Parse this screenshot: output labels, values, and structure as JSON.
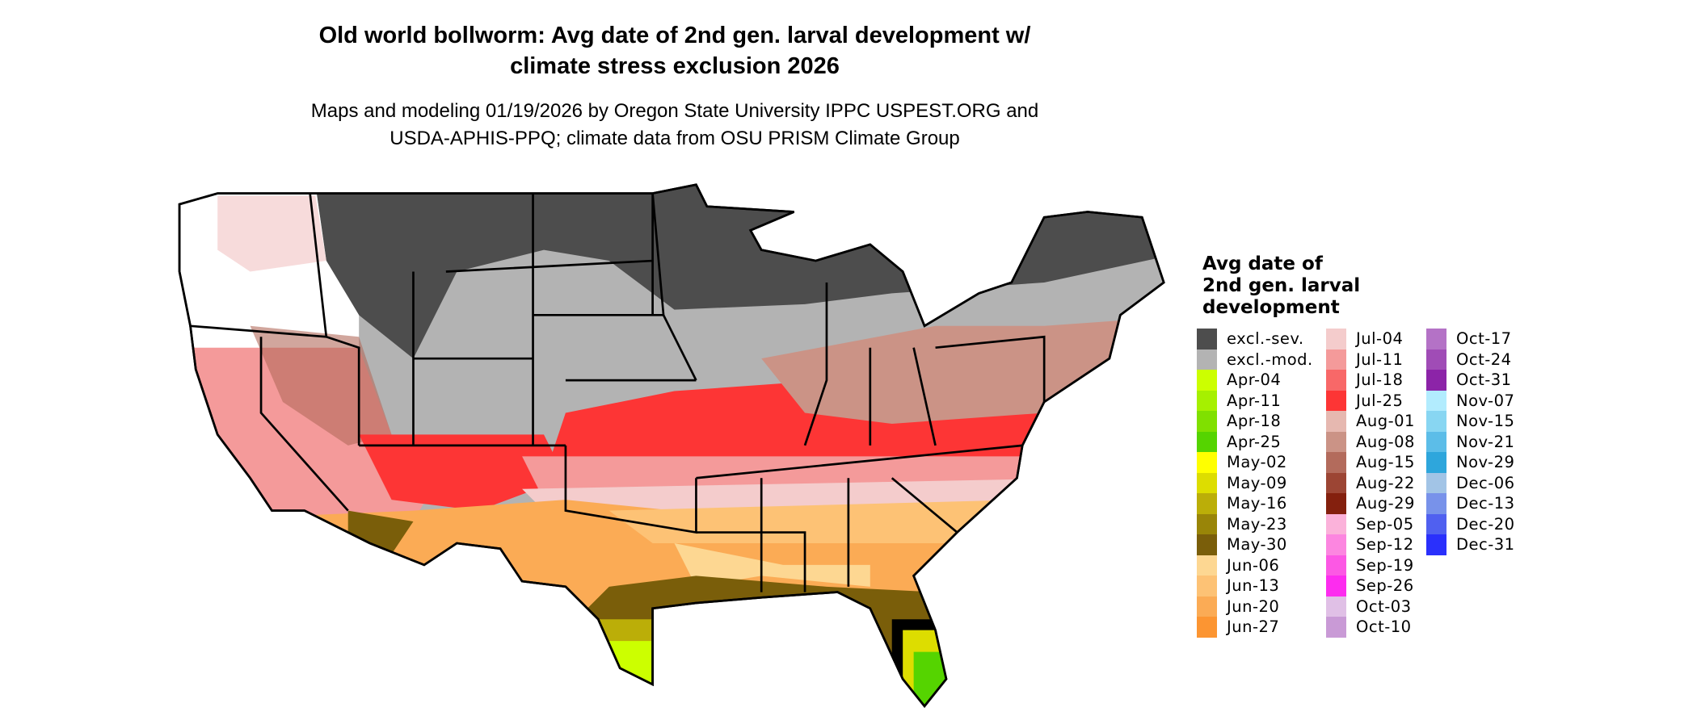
{
  "title_line1": "Old world bollworm: Avg date of 2nd gen. larval development w/",
  "title_line2": "climate stress exclusion 2026",
  "subtitle_line1": "Maps and modeling 01/19/2026 by Oregon State University IPPC USPEST.ORG and",
  "subtitle_line2": "USDA-APHIS-PPQ; climate data from OSU PRISM Climate Group",
  "legend": {
    "title": [
      "Avg date of",
      "2nd gen. larval",
      "development"
    ],
    "columns": [
      [
        {
          "label": "excl.-sev.",
          "color": "#4d4d4d"
        },
        {
          "label": "excl.-mod.",
          "color": "#b3b3b3"
        },
        {
          "label": "Apr-04",
          "color": "#ccff00"
        },
        {
          "label": "Apr-11",
          "color": "#a6f000"
        },
        {
          "label": "Apr-18",
          "color": "#80e000"
        },
        {
          "label": "Apr-25",
          "color": "#55d400"
        },
        {
          "label": "May-02",
          "color": "#ffff00"
        },
        {
          "label": "May-09",
          "color": "#dddd00"
        },
        {
          "label": "May-16",
          "color": "#bbae08"
        },
        {
          "label": "May-23",
          "color": "#998508"
        },
        {
          "label": "May-30",
          "color": "#7a5e0a"
        },
        {
          "label": "Jun-06",
          "color": "#fdd792"
        },
        {
          "label": "Jun-13",
          "color": "#fdc275"
        },
        {
          "label": "Jun-20",
          "color": "#fbab55"
        },
        {
          "label": "Jun-27",
          "color": "#fc9532"
        }
      ],
      [
        {
          "label": "Jul-04",
          "color": "#f4cccc"
        },
        {
          "label": "Jul-11",
          "color": "#f49a9a"
        },
        {
          "label": "Jul-18",
          "color": "#f86868"
        },
        {
          "label": "Jul-25",
          "color": "#fd3535"
        },
        {
          "label": "Aug-01",
          "color": "#e6b8b0"
        },
        {
          "label": "Aug-08",
          "color": "#cb9386"
        },
        {
          "label": "Aug-15",
          "color": "#b36b5c"
        },
        {
          "label": "Aug-22",
          "color": "#9c4534"
        },
        {
          "label": "Aug-29",
          "color": "#84200e"
        },
        {
          "label": "Sep-05",
          "color": "#fbb2da"
        },
        {
          "label": "Sep-12",
          "color": "#fc86e0"
        },
        {
          "label": "Sep-19",
          "color": "#fc58e4"
        },
        {
          "label": "Sep-26",
          "color": "#fd2cef"
        },
        {
          "label": "Oct-03",
          "color": "#e0c0e6"
        },
        {
          "label": "Oct-10",
          "color": "#c99ad6"
        }
      ],
      [
        {
          "label": "Oct-17",
          "color": "#b472c6"
        },
        {
          "label": "Oct-24",
          "color": "#a04cb6"
        },
        {
          "label": "Oct-31",
          "color": "#8c24a8"
        },
        {
          "label": "Nov-07",
          "color": "#b2ecfe"
        },
        {
          "label": "Nov-15",
          "color": "#88d6f2"
        },
        {
          "label": "Nov-21",
          "color": "#5cbde8"
        },
        {
          "label": "Nov-29",
          "color": "#2ea6dc"
        },
        {
          "label": "Dec-06",
          "color": "#a2c4e6"
        },
        {
          "label": "Dec-13",
          "color": "#7892ea"
        },
        {
          "label": "Dec-20",
          "color": "#5060f0"
        },
        {
          "label": "Dec-31",
          "color": "#2a30fc"
        }
      ]
    ]
  }
}
